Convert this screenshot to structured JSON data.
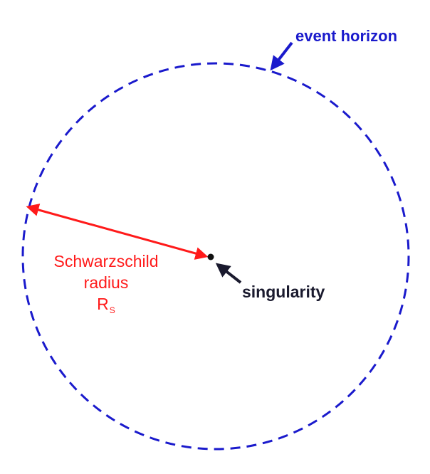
{
  "labels": {
    "event_horizon": "event horizon",
    "singularity": "singularity",
    "radius_line1": "Schwarzschild",
    "radius_line2": "radius",
    "radius_symbol": "R",
    "radius_subscript": "S"
  },
  "colors": {
    "event_horizon": "#1a1acc",
    "radius_arrow": "#ff1a1a",
    "singularity": "#1a1a2e",
    "background": "#ffffff"
  },
  "icons": {
    "event_horizon_pointer": "arrow-icon",
    "singularity_pointer": "arrow-icon",
    "radius_arrow": "double-arrow-icon"
  }
}
